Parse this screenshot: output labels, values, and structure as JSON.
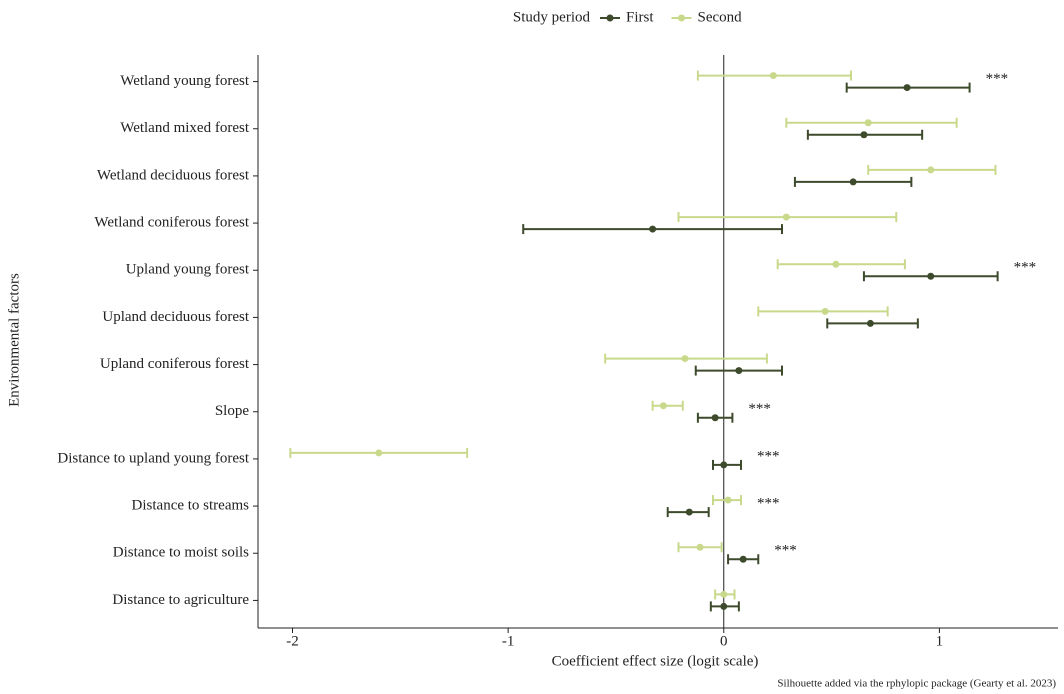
{
  "chart_data": {
    "type": "forest",
    "legend_title": "Study period",
    "x_label": "Coefficient effect size (logit scale)",
    "y_label": "Environmental factors",
    "caption": "Silhouette added via the rphylopic package (Gearty et al. 2023)",
    "categories": [
      "Wetland young forest",
      "Wetland mixed forest",
      "Wetland deciduous forest",
      "Wetland coniferous forest",
      "Upland young forest",
      "Upland deciduous forest",
      "Upland coniferous forest",
      "Slope",
      "Distance to upland young forest",
      "Distance to streams",
      "Distance to moist soils",
      "Distance to agriculture"
    ],
    "significance": [
      "***",
      null,
      null,
      null,
      "***",
      null,
      null,
      "***",
      "***",
      "***",
      "***",
      null
    ],
    "series": [
      {
        "name": "First",
        "color": "#3d4a2c",
        "values": [
          0.85,
          0.65,
          0.6,
          -0.33,
          0.96,
          0.68,
          0.07,
          -0.04,
          0.0,
          -0.16,
          0.09,
          0.0
        ],
        "lower": [
          0.57,
          0.39,
          0.33,
          -0.93,
          0.65,
          0.48,
          -0.13,
          -0.12,
          -0.05,
          -0.26,
          0.02,
          -0.06
        ],
        "upper": [
          1.14,
          0.92,
          0.87,
          0.27,
          1.27,
          0.9,
          0.27,
          0.04,
          0.08,
          -0.07,
          0.16,
          0.07
        ]
      },
      {
        "name": "Second",
        "color": "#c9d98c",
        "values": [
          0.23,
          0.67,
          0.96,
          0.29,
          0.52,
          0.47,
          -0.18,
          -0.28,
          -1.6,
          0.02,
          -0.11,
          0.0
        ],
        "lower": [
          -0.12,
          0.29,
          0.67,
          -0.21,
          0.25,
          0.16,
          -0.55,
          -0.33,
          -2.01,
          -0.05,
          -0.21,
          -0.04
        ],
        "upper": [
          0.59,
          1.08,
          1.26,
          0.8,
          0.84,
          0.76,
          0.2,
          -0.19,
          -1.19,
          0.08,
          -0.01,
          0.05
        ]
      }
    ],
    "xlim": [
      -2.16,
      1.55
    ],
    "xticks": [
      -2,
      -1,
      0,
      1
    ],
    "zero_line": true
  }
}
